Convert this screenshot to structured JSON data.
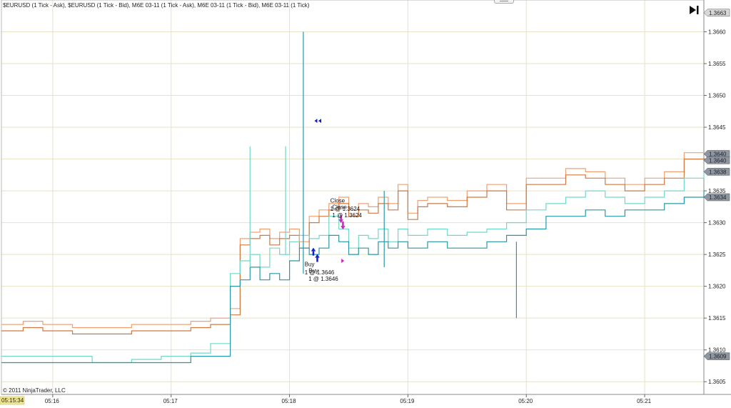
{
  "window": {
    "title": "$EURUSD (1 Tick - Ask), $EURUSD (1 Tick - Bid), M6E 03-11 (1 Tick - Ask), M6E 03-11 (1 Tick - Bid), M6E 03-11 (1 Tick)",
    "copyright": "© 2011 NinjaTrader, LLC",
    "jump_to_end_icon": "skip-to-end-icon"
  },
  "chart_data": {
    "type": "line",
    "title": "$EURUSD (1 Tick - Ask), $EURUSD (1 Tick - Bid), M6E 03-11 (1 Tick - Ask), M6E 03-11 (1 Tick - Bid), M6E 03-11 (1 Tick)",
    "xlabel": "",
    "ylabel": "",
    "grid": true,
    "ylim": [
      1.3603,
      1.3665
    ],
    "xlim": [
      "05:15:34",
      "05:21:30"
    ],
    "x_ticks": [
      "05:16",
      "05:17",
      "05:18",
      "05:19",
      "05:20",
      "05:21"
    ],
    "y_ticks": [
      "1.3605",
      "1.3610",
      "1.3615",
      "1.3620",
      "1.3625",
      "1.3630",
      "1.3635",
      "1.3640",
      "1.3645",
      "1.3650",
      "1.3655",
      "1.3660"
    ],
    "start_time_label": "05:15:34",
    "price_labels": [
      {
        "text": "1.3663",
        "value": 1.3663,
        "color": "#d8d8d8"
      },
      {
        "text": "1.3640",
        "value": 1.36408,
        "color": "#8e96a2"
      },
      {
        "text": "1.3640",
        "value": 1.36398,
        "color": "#8e96a2"
      },
      {
        "text": "1.3638",
        "value": 1.3638,
        "color": "#8e96a2"
      },
      {
        "text": "1.3634",
        "value": 1.3634,
        "color": "#8e96a2"
      },
      {
        "text": "1.3609",
        "value": 1.3609,
        "color": "#8e96a2"
      }
    ],
    "series": [
      {
        "name": "$EURUSD (1 Tick - Ask)",
        "color": "#f0a070",
        "x": [
          "05:15:34",
          "05:15:45",
          "05:15:55",
          "05:16:10",
          "05:16:25",
          "05:16:40",
          "05:16:55",
          "05:17:10",
          "05:17:20",
          "05:17:30",
          "05:17:35",
          "05:17:40",
          "05:17:45",
          "05:17:50",
          "05:17:55",
          "05:18:00",
          "05:18:05",
          "05:18:10",
          "05:18:15",
          "05:18:20",
          "05:18:25",
          "05:18:30",
          "05:18:35",
          "05:18:40",
          "05:18:45",
          "05:18:50",
          "05:18:55",
          "05:19:00",
          "05:19:05",
          "05:19:10",
          "05:19:20",
          "05:19:30",
          "05:19:40",
          "05:19:50",
          "05:20:00",
          "05:20:10",
          "05:20:20",
          "05:20:30",
          "05:20:40",
          "05:20:50",
          "05:21:00",
          "05:21:10",
          "05:21:20",
          "05:21:30"
        ],
        "y": [
          1.3614,
          1.36145,
          1.3614,
          1.36135,
          1.36135,
          1.3614,
          1.3614,
          1.36145,
          1.3615,
          1.36165,
          1.36275,
          1.36285,
          1.3629,
          1.36275,
          1.36285,
          1.3629,
          1.3627,
          1.3631,
          1.3632,
          1.3633,
          1.3634,
          1.3632,
          1.3633,
          1.36325,
          1.3634,
          1.3633,
          1.3636,
          1.36315,
          1.36335,
          1.3634,
          1.36335,
          1.3635,
          1.3636,
          1.3633,
          1.3637,
          1.3637,
          1.36385,
          1.3638,
          1.3637,
          1.3636,
          1.3637,
          1.3638,
          1.3641,
          1.3641
        ]
      },
      {
        "name": "$EURUSD (1 Tick - Bid)",
        "color": "#d07840",
        "x": [
          "05:15:34",
          "05:15:45",
          "05:15:55",
          "05:16:10",
          "05:16:25",
          "05:16:40",
          "05:16:55",
          "05:17:10",
          "05:17:20",
          "05:17:30",
          "05:17:35",
          "05:17:40",
          "05:17:45",
          "05:17:50",
          "05:17:55",
          "05:18:00",
          "05:18:05",
          "05:18:10",
          "05:18:15",
          "05:18:20",
          "05:18:25",
          "05:18:30",
          "05:18:35",
          "05:18:40",
          "05:18:45",
          "05:18:50",
          "05:18:55",
          "05:19:00",
          "05:19:05",
          "05:19:10",
          "05:19:20",
          "05:19:30",
          "05:19:40",
          "05:19:50",
          "05:20:00",
          "05:20:10",
          "05:20:20",
          "05:20:30",
          "05:20:40",
          "05:20:50",
          "05:21:00",
          "05:21:10",
          "05:21:20",
          "05:21:30"
        ],
        "y": [
          1.3613,
          1.36135,
          1.3613,
          1.36125,
          1.36125,
          1.3613,
          1.3613,
          1.36135,
          1.3614,
          1.36155,
          1.36265,
          1.36275,
          1.3628,
          1.36265,
          1.36275,
          1.3628,
          1.3626,
          1.363,
          1.3631,
          1.3632,
          1.3633,
          1.3631,
          1.3632,
          1.36315,
          1.3633,
          1.3632,
          1.3635,
          1.36305,
          1.36325,
          1.3633,
          1.36325,
          1.3634,
          1.3635,
          1.3632,
          1.3636,
          1.3636,
          1.36375,
          1.3637,
          1.3636,
          1.3635,
          1.3636,
          1.3637,
          1.364,
          1.364
        ]
      },
      {
        "name": "M6E 03-11 (1 Tick - Ask)",
        "color": "#70d8c8",
        "x": [
          "05:15:34",
          "05:15:50",
          "05:16:05",
          "05:16:20",
          "05:16:40",
          "05:16:55",
          "05:17:10",
          "05:17:20",
          "05:17:30",
          "05:17:35",
          "05:17:40",
          "05:17:45",
          "05:17:50",
          "05:17:55",
          "05:18:00",
          "05:18:05",
          "05:18:10",
          "05:18:15",
          "05:18:20",
          "05:18:25",
          "05:18:30",
          "05:18:35",
          "05:18:40",
          "05:18:45",
          "05:18:50",
          "05:18:55",
          "05:19:00",
          "05:19:10",
          "05:19:20",
          "05:19:30",
          "05:19:40",
          "05:19:50",
          "05:20:00",
          "05:20:10",
          "05:20:20",
          "05:20:30",
          "05:20:40",
          "05:20:50",
          "05:21:00",
          "05:21:10",
          "05:21:20",
          "05:21:30"
        ],
        "y": [
          1.3609,
          1.3609,
          1.3609,
          1.3608,
          1.36085,
          1.3609,
          1.36095,
          1.3611,
          1.3622,
          1.3624,
          1.3625,
          1.3623,
          1.3626,
          1.3625,
          1.3627,
          1.3628,
          1.36275,
          1.3628,
          1.3631,
          1.3629,
          1.3626,
          1.3628,
          1.36275,
          1.3629,
          1.3627,
          1.3629,
          1.3628,
          1.3629,
          1.3628,
          1.36285,
          1.3629,
          1.363,
          1.3632,
          1.3633,
          1.3634,
          1.3635,
          1.3634,
          1.3633,
          1.3634,
          1.3635,
          1.3637,
          1.3638
        ]
      },
      {
        "name": "M6E 03-11 (1 Tick - Bid)",
        "color": "#2898a8",
        "x": [
          "05:15:34",
          "05:15:50",
          "05:16:05",
          "05:16:20",
          "05:16:40",
          "05:16:55",
          "05:17:10",
          "05:17:20",
          "05:17:30",
          "05:17:35",
          "05:17:40",
          "05:17:45",
          "05:17:50",
          "05:17:55",
          "05:18:00",
          "05:18:05",
          "05:18:10",
          "05:18:15",
          "05:18:20",
          "05:18:25",
          "05:18:30",
          "05:18:35",
          "05:18:40",
          "05:18:45",
          "05:18:50",
          "05:18:55",
          "05:19:00",
          "05:19:10",
          "05:19:20",
          "05:19:30",
          "05:19:40",
          "05:19:50",
          "05:20:00",
          "05:20:10",
          "05:20:20",
          "05:20:30",
          "05:20:40",
          "05:20:50",
          "05:21:00",
          "05:21:10",
          "05:21:20",
          "05:21:30"
        ],
        "y": [
          1.3608,
          1.3608,
          1.3608,
          1.3608,
          1.3608,
          1.3608,
          1.3609,
          1.3609,
          1.362,
          1.3621,
          1.3623,
          1.3621,
          1.3622,
          1.3621,
          1.3624,
          1.3626,
          1.3625,
          1.3626,
          1.3628,
          1.3627,
          1.3625,
          1.3626,
          1.3625,
          1.3627,
          1.3626,
          1.3627,
          1.3626,
          1.3627,
          1.3626,
          1.3626,
          1.3627,
          1.3628,
          1.3629,
          1.3631,
          1.3631,
          1.3632,
          1.3631,
          1.3632,
          1.3632,
          1.3633,
          1.3634,
          1.3635
        ]
      }
    ],
    "spikes": [
      {
        "x": "05:17:40",
        "y_from": 1.3623,
        "y_to": 1.3642,
        "color": "#70d8c8"
      },
      {
        "x": "05:17:58",
        "y_from": 1.3625,
        "y_to": 1.3642,
        "color": "#70d8c8"
      },
      {
        "x": "05:18:07",
        "y_from": 1.3622,
        "y_to": 1.366,
        "color": "#2898a8"
      },
      {
        "x": "05:18:48",
        "y_from": 1.3623,
        "y_to": 1.3635,
        "color": "#2898a8"
      },
      {
        "x": "05:19:55",
        "y_from": 1.3615,
        "y_to": 1.3627,
        "color": "#2898a8"
      }
    ],
    "markers": [
      {
        "type": "arrow-up",
        "x": "05:18:12",
        "y": 1.36255,
        "color": "#1020d0"
      },
      {
        "type": "arrow-up",
        "x": "05:18:14",
        "y": 1.36245,
        "color": "#1020d0"
      },
      {
        "type": "arrow-down",
        "x": "05:18:26",
        "y": 1.36305,
        "color": "#d020c0"
      },
      {
        "type": "arrow-down",
        "x": "05:18:27",
        "y": 1.36295,
        "color": "#d020c0"
      },
      {
        "type": "triangle-left",
        "x": "05:18:13",
        "y": 1.3646,
        "color": "#1020d0"
      },
      {
        "type": "triangle-left",
        "x": "05:18:15",
        "y": 1.3646,
        "color": "#1020d0"
      },
      {
        "type": "triangle-right",
        "x": "05:18:27",
        "y": 1.3624,
        "color": "#d020c0"
      }
    ],
    "annotations": [
      {
        "text": "Close",
        "x": "05:18:25",
        "y": 1.36335
      },
      {
        "text": "Close",
        "x": "05:18:26",
        "y": 1.36325
      },
      {
        "text": "1 @ 1.3624",
        "x": "05:18:25",
        "y": 1.36322
      },
      {
        "text": "1 @ 1.3624",
        "x": "05:18:26",
        "y": 1.36312
      },
      {
        "text": "Buy",
        "x": "05:18:12",
        "y": 1.36235
      },
      {
        "text": "Buy",
        "x": "05:18:14",
        "y": 1.36225
      },
      {
        "text": "1 @ 1.3646",
        "x": "05:18:12",
        "y": 1.36222
      },
      {
        "text": "1 @ 1.3646",
        "x": "05:18:14",
        "y": 1.36212
      }
    ]
  }
}
